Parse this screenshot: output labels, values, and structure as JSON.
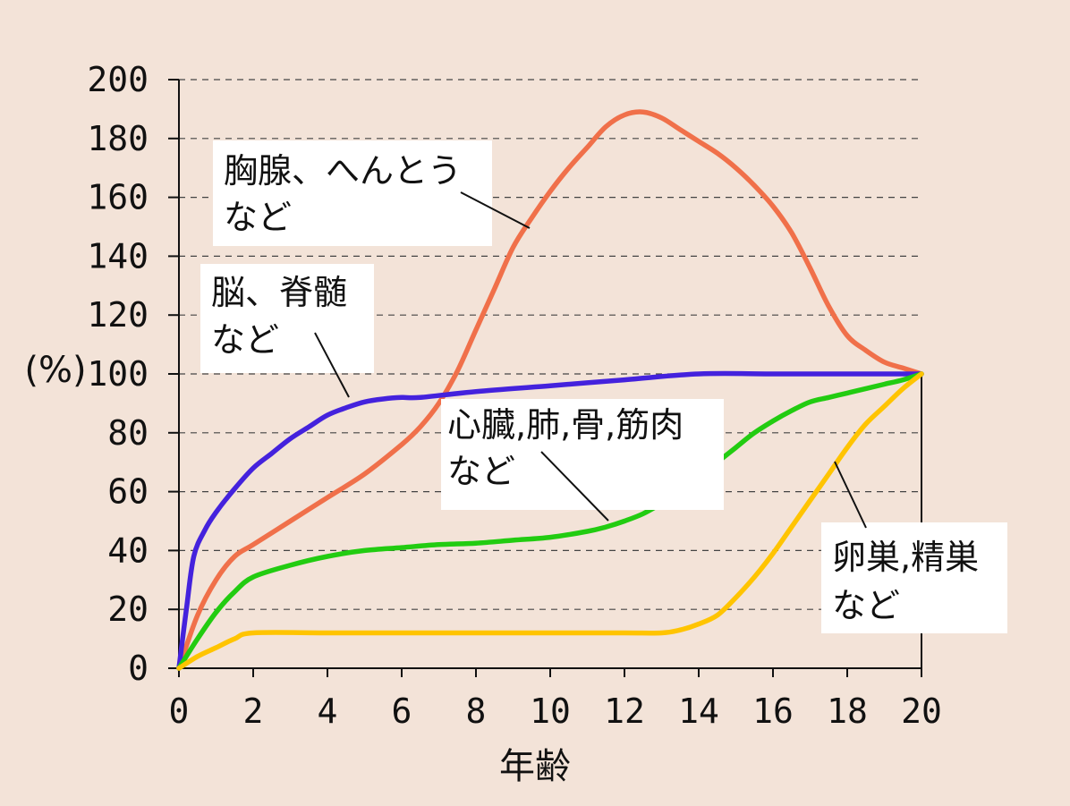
{
  "chart_data": {
    "type": "line",
    "xlabel": "年齢",
    "ylabel": "(%)",
    "xlim": [
      0,
      20
    ],
    "ylim": [
      0,
      200
    ],
    "x_ticks": [
      "0",
      "2",
      "4",
      "6",
      "8",
      "10",
      "12",
      "14",
      "16",
      "18",
      "20"
    ],
    "y_ticks": [
      "0",
      "20",
      "40",
      "60",
      "80",
      "100",
      "120",
      "140",
      "160",
      "180",
      "200"
    ],
    "grid": "horizontal dashed",
    "series": [
      {
        "name_lines": [
          "胸腺、へんとう",
          "など"
        ],
        "color": "#f0704a",
        "x": [
          0,
          0.5,
          1,
          1.5,
          2,
          3,
          4,
          5,
          6,
          6.5,
          7,
          7.5,
          8,
          8.5,
          9,
          9.5,
          10,
          10.5,
          11,
          11.5,
          12,
          12.5,
          13,
          13.5,
          14,
          14.5,
          15,
          15.5,
          16,
          16.5,
          17,
          17.5,
          18,
          18.5,
          19,
          19.5,
          20
        ],
        "y": [
          0,
          18,
          30,
          38,
          42,
          50,
          58,
          66,
          76,
          82,
          90,
          101,
          115,
          129,
          143,
          153,
          162,
          170,
          177,
          184,
          188,
          189,
          187,
          183,
          179,
          175,
          170,
          164,
          157,
          148,
          136,
          123,
          113,
          108,
          104,
          102,
          100
        ]
      },
      {
        "name_lines": [
          "脳、脊髄",
          "など"
        ],
        "color": "#4422dd",
        "x": [
          0,
          0.2,
          0.4,
          0.7,
          1,
          1.5,
          2,
          2.5,
          3,
          3.5,
          4,
          4.5,
          5,
          5.5,
          6,
          6.5,
          8,
          10,
          12,
          14,
          16,
          18,
          20
        ],
        "y": [
          0,
          20,
          38,
          47,
          53,
          61,
          68,
          73,
          78,
          82,
          86,
          88.5,
          90.5,
          91.5,
          92,
          92,
          94,
          96,
          98,
          100,
          100,
          100,
          100
        ]
      },
      {
        "name_lines": [
          "心臓,肺,骨,筋肉",
          "など"
        ],
        "color": "#22cc11",
        "x": [
          0,
          0.5,
          1,
          1.5,
          2,
          3,
          4,
          5,
          6,
          7,
          8,
          9,
          10,
          11,
          11.5,
          12,
          12.5,
          13,
          13.5,
          14,
          14.5,
          15,
          15.5,
          16,
          16.5,
          17,
          17.5,
          18,
          18.5,
          19,
          19.5,
          20
        ],
        "y": [
          0,
          10,
          19,
          26,
          31,
          35,
          38,
          40,
          41,
          42,
          42.5,
          43.5,
          44.5,
          46.5,
          48,
          50,
          52.5,
          56,
          60,
          65,
          70,
          75,
          80,
          84,
          87.5,
          90.5,
          92,
          93.5,
          95,
          96.5,
          98,
          100
        ]
      },
      {
        "name_lines": [
          "卵巣,精巣",
          "など"
        ],
        "color": "#ffc400",
        "x": [
          0,
          0.5,
          1,
          1.5,
          2,
          4,
          6,
          8,
          10,
          12,
          13,
          13.5,
          14,
          14.5,
          15,
          15.5,
          16,
          16.5,
          17,
          17.5,
          18,
          18.5,
          19,
          19.5,
          20
        ],
        "y": [
          0,
          4,
          7,
          10,
          12,
          12,
          12,
          12,
          12,
          12,
          12,
          13,
          15,
          18,
          24,
          31,
          39,
          48,
          57,
          66,
          75,
          83,
          89,
          95,
          100
        ]
      }
    ]
  }
}
